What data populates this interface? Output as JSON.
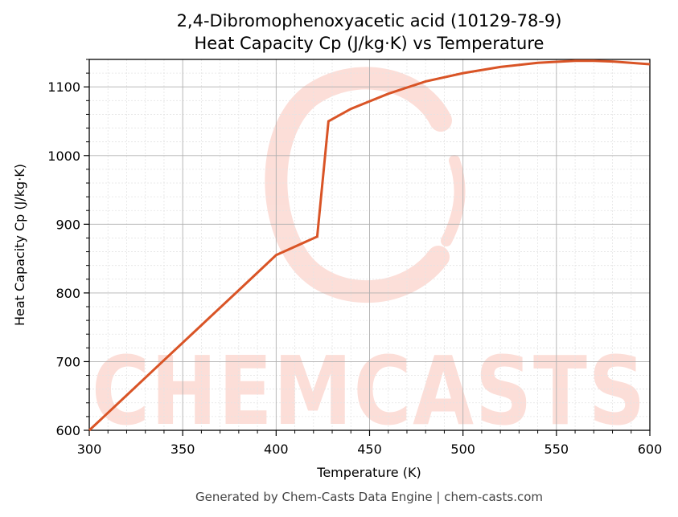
{
  "title_line1": "2,4-Dibromophenoxyacetic acid (10129-78-9)",
  "title_line2": "Heat Capacity Cp (J/kg·K) vs Temperature",
  "footer": "Generated by Chem-Casts Data Engine | chem-casts.com",
  "watermark": "CHEMCASTS",
  "colors": {
    "line": "#d95426",
    "watermark": "#fcd9d2",
    "grid_major": "#b0b0b0",
    "grid_minor": "#e4e4e4"
  },
  "chart_data": {
    "type": "line",
    "title": "2,4-Dibromophenoxyacetic acid (10129-78-9)\nHeat Capacity Cp (J/kg·K) vs Temperature",
    "xlabel": "Temperature (K)",
    "ylabel": "Heat Capacity Cp (J/kg·K)",
    "xlim": [
      300,
      600
    ],
    "ylim": [
      600,
      1140
    ],
    "xticks": [
      300,
      350,
      400,
      450,
      500,
      550,
      600
    ],
    "yticks": [
      600,
      700,
      800,
      900,
      1000,
      1100
    ],
    "grid": true,
    "series": [
      {
        "x": [
          300,
          320,
          340,
          360,
          380,
          400,
          422,
          428,
          440,
          460,
          480,
          500,
          520,
          540,
          560,
          570,
          580,
          600
        ],
        "y": [
          600,
          651,
          702,
          753,
          804,
          855,
          882,
          1050,
          1068,
          1090,
          1108,
          1120,
          1129,
          1135,
          1138,
          1138,
          1137,
          1133
        ]
      }
    ]
  }
}
